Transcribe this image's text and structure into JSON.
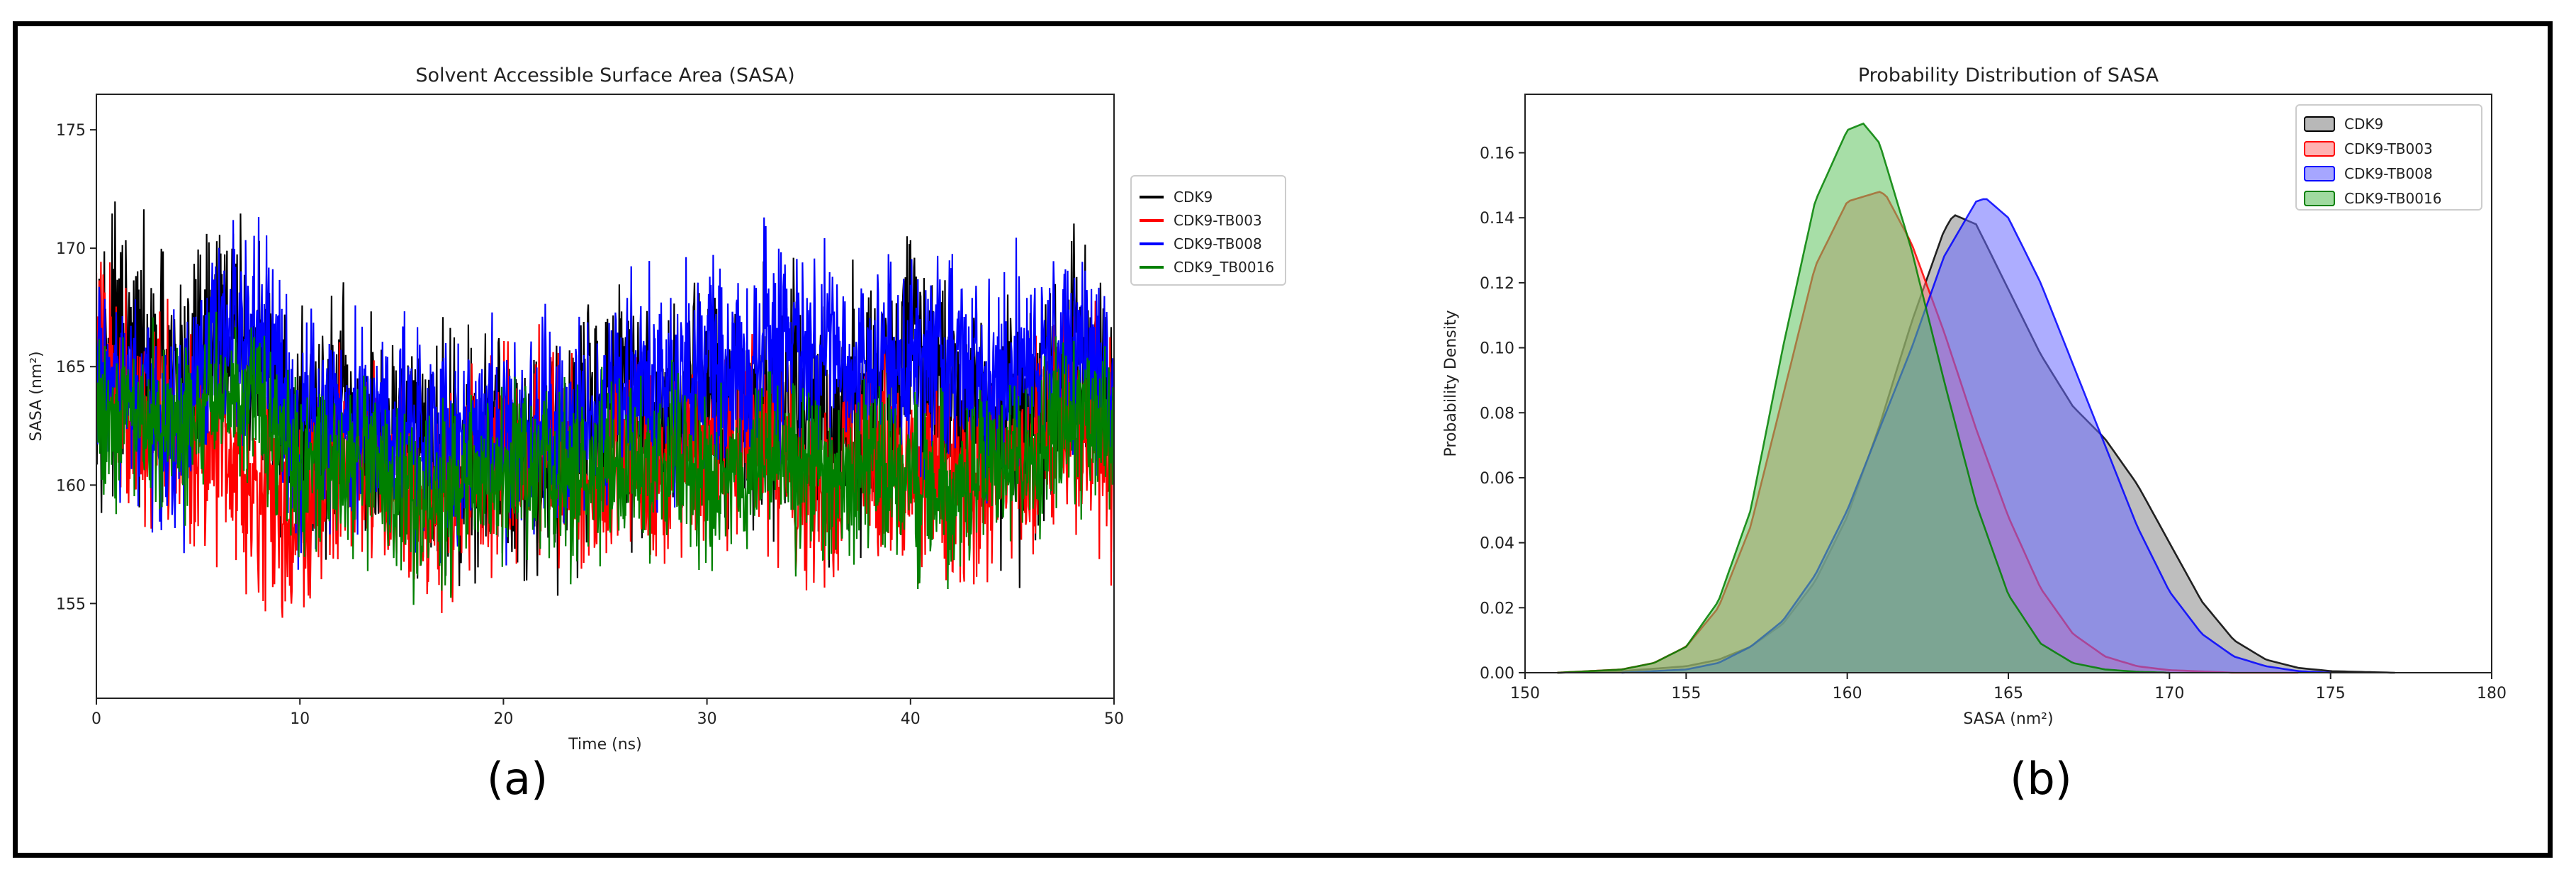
{
  "chart_data": [
    {
      "type": "line",
      "title": "Solvent Accessible Surface Area (SASA)",
      "xlabel": "Time (ns)",
      "ylabel": "SASA (nm²)",
      "xlim": [
        0,
        50
      ],
      "ylim": [
        151,
        176.5
      ],
      "xticks": [
        "0",
        "10",
        "20",
        "30",
        "40",
        "50"
      ],
      "yticks": [
        "155",
        "160",
        "165",
        "170",
        "175"
      ],
      "grid": false,
      "legend_position": "outside-right",
      "panel_label": "(a)",
      "series": [
        {
          "name": "CDK9",
          "color": "#000000",
          "x": [
            0,
            2,
            4,
            6,
            8,
            10,
            12,
            14,
            16,
            18,
            20,
            22,
            24,
            26,
            28,
            30,
            32,
            34,
            36,
            38,
            40,
            42,
            44,
            46,
            48,
            50
          ],
          "values": [
            166,
            165,
            164,
            167,
            165,
            162,
            163,
            161,
            162,
            161,
            162,
            161,
            163,
            164,
            162,
            165,
            163,
            164,
            162,
            164,
            166,
            164,
            163,
            162,
            166,
            163
          ]
        },
        {
          "name": "CDK9-TB003",
          "color": "#ff0000",
          "x": [
            0,
            2,
            4,
            6,
            8,
            10,
            12,
            14,
            16,
            18,
            20,
            22,
            24,
            26,
            28,
            30,
            32,
            34,
            36,
            38,
            40,
            42,
            44,
            46,
            48,
            50
          ],
          "values": [
            166,
            163,
            162,
            162,
            160,
            158,
            161,
            161,
            159,
            160,
            161,
            162,
            160,
            161,
            161,
            161,
            162,
            161,
            160,
            161,
            161,
            160,
            160,
            162,
            163,
            161
          ]
        },
        {
          "name": "CDK9-TB008",
          "color": "#0000ff",
          "x": [
            0,
            2,
            4,
            6,
            8,
            10,
            12,
            14,
            16,
            18,
            20,
            22,
            24,
            26,
            28,
            30,
            32,
            34,
            36,
            38,
            40,
            42,
            44,
            46,
            48,
            50
          ],
          "values": [
            165,
            163,
            162,
            166,
            166,
            162,
            163,
            163,
            162,
            162,
            162,
            163,
            163,
            164,
            164,
            165,
            165,
            166,
            165,
            165,
            166,
            165,
            164,
            165,
            166,
            165
          ]
        },
        {
          "name": "CDK9_TB0016",
          "color": "#008000",
          "x": [
            0,
            2,
            4,
            6,
            8,
            10,
            12,
            14,
            16,
            18,
            20,
            22,
            24,
            26,
            28,
            30,
            32,
            34,
            36,
            38,
            40,
            42,
            44,
            46,
            48,
            50
          ],
          "values": [
            163,
            163,
            162,
            164,
            164,
            160,
            161,
            160,
            159,
            160,
            160,
            161,
            160,
            161,
            161,
            160,
            161,
            161,
            160,
            161,
            160,
            160,
            161,
            161,
            163,
            162
          ]
        }
      ]
    },
    {
      "type": "area",
      "title": "Probability Distribution of SASA",
      "xlabel": "SASA (nm²)",
      "ylabel": "Probability Density",
      "xlim": [
        150,
        180
      ],
      "ylim": [
        0,
        0.178
      ],
      "xticks": [
        "150",
        "155",
        "160",
        "165",
        "170",
        "175",
        "180"
      ],
      "yticks": [
        "0.00",
        "0.02",
        "0.04",
        "0.06",
        "0.08",
        "0.10",
        "0.12",
        "0.14",
        "0.16"
      ],
      "grid": false,
      "legend_position": "top-right",
      "panel_label": "(b)",
      "series": [
        {
          "name": "CDK9",
          "color": "#000000",
          "fill": "#888888",
          "x": [
            151,
            153,
            155,
            156,
            157,
            158,
            159,
            160,
            161,
            162,
            163,
            163.3,
            164,
            165,
            166,
            167,
            168,
            169,
            170,
            171,
            172,
            173,
            174,
            175,
            177
          ],
          "values": [
            0,
            0.0005,
            0.002,
            0.004,
            0.008,
            0.015,
            0.028,
            0.048,
            0.076,
            0.108,
            0.136,
            0.141,
            0.138,
            0.118,
            0.098,
            0.082,
            0.072,
            0.058,
            0.04,
            0.022,
            0.01,
            0.004,
            0.0015,
            0.0005,
            0
          ]
        },
        {
          "name": "CDK9-TB003",
          "color": "#ff0000",
          "fill": "#ff7f7f",
          "x": [
            151,
            153,
            154,
            155,
            156,
            157,
            158,
            159,
            160,
            161,
            161.2,
            162,
            163,
            164,
            165,
            166,
            167,
            168,
            169,
            170,
            172,
            174
          ],
          "values": [
            0,
            0.001,
            0.003,
            0.008,
            0.02,
            0.045,
            0.085,
            0.125,
            0.145,
            0.148,
            0.147,
            0.132,
            0.105,
            0.075,
            0.048,
            0.026,
            0.012,
            0.005,
            0.002,
            0.0008,
            0,
            0
          ]
        },
        {
          "name": "CDK9-TB008",
          "color": "#0000ff",
          "fill": "#6a6aff",
          "x": [
            153,
            155,
            156,
            157,
            158,
            159,
            160,
            161,
            162,
            163,
            164,
            164.3,
            165,
            166,
            167,
            168,
            169,
            170,
            171,
            172,
            173,
            174,
            175
          ],
          "values": [
            0,
            0.001,
            0.003,
            0.008,
            0.016,
            0.03,
            0.05,
            0.075,
            0.1,
            0.128,
            0.145,
            0.146,
            0.14,
            0.12,
            0.095,
            0.07,
            0.045,
            0.025,
            0.012,
            0.005,
            0.002,
            0.0005,
            0
          ]
        },
        {
          "name": "CDK9-TB0016",
          "color": "#008000",
          "fill": "#5fc25f",
          "x": [
            151,
            153,
            154,
            155,
            156,
            157,
            158,
            159,
            160,
            160.5,
            161,
            162,
            163,
            164,
            165,
            166,
            167,
            168,
            169,
            170
          ],
          "values": [
            0,
            0.001,
            0.003,
            0.008,
            0.022,
            0.05,
            0.1,
            0.145,
            0.167,
            0.169,
            0.163,
            0.13,
            0.09,
            0.052,
            0.024,
            0.009,
            0.003,
            0.001,
            0.0003,
            0
          ]
        }
      ]
    }
  ]
}
